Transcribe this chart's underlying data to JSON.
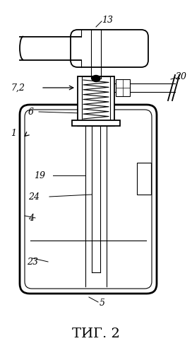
{
  "bg_color": "#ffffff",
  "line_color": "#000000",
  "fig_label": "ΤИГ. 2",
  "lw_thick": 2.0,
  "lw_med": 1.3,
  "lw_thin": 0.8,
  "fs_label": 9,
  "fs_caption": 14
}
